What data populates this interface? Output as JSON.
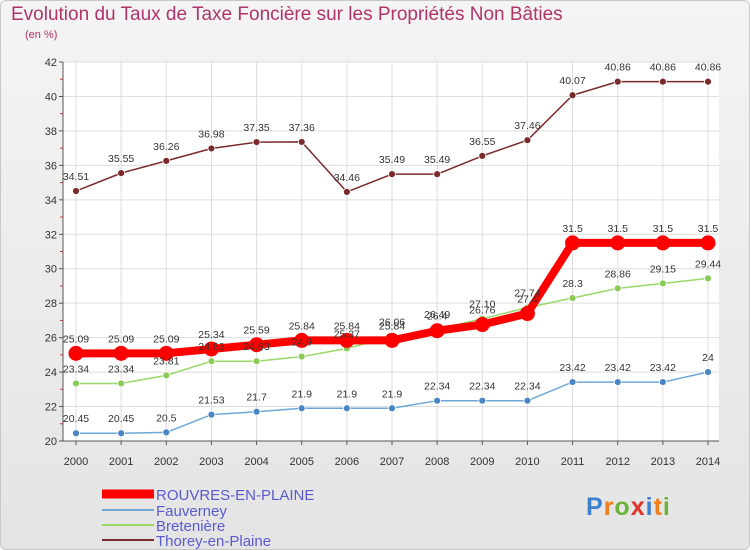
{
  "chart_data": {
    "type": "line",
    "title": "Evolution du Taux de Taxe Foncière sur les Propriétés Non Bâties",
    "subtitle": "(en %)",
    "xlabel": "",
    "ylabel": "",
    "ylim": [
      20,
      42
    ],
    "yticks": [
      20,
      22,
      24,
      26,
      28,
      30,
      32,
      34,
      36,
      38,
      40,
      42
    ],
    "grid": true,
    "legend_position": "bottom-left",
    "categories": [
      "2000",
      "2001",
      "2002",
      "2003",
      "2004",
      "2005",
      "2006",
      "2007",
      "2008",
      "2009",
      "2010",
      "2011",
      "2012",
      "2013",
      "2014"
    ],
    "series": [
      {
        "name": "ROUVRES-EN-PLAINE",
        "color": "#ff0000",
        "marker": "#ff0000",
        "values": [
          25.09,
          25.09,
          25.09,
          25.34,
          25.59,
          25.84,
          25.84,
          25.84,
          26.4,
          26.76,
          27.4,
          31.5,
          31.5,
          31.5,
          31.5
        ],
        "labels": [
          "25.09",
          "25.09",
          "25.09",
          "25.34",
          "25.59",
          "25.84",
          "25.84",
          "25.84",
          "26.4",
          "26.76",
          "27.4",
          "31.5",
          "31.5",
          "31.5",
          "31.5"
        ]
      },
      {
        "name": "Fauverney",
        "color": "#6ea7d6",
        "marker": "#4a86c6",
        "values": [
          20.45,
          20.45,
          20.5,
          21.53,
          21.7,
          21.9,
          21.9,
          21.9,
          22.34,
          22.34,
          22.34,
          23.42,
          23.42,
          23.42,
          24
        ],
        "labels": [
          "20.45",
          "20.45",
          "20.5",
          "21.53",
          "21.7",
          "21.9",
          "21.9",
          "21.9",
          "22.34",
          "22.34",
          "22.34",
          "23.42",
          "23.42",
          "23.42",
          "24"
        ]
      },
      {
        "name": "Bretenière",
        "color": "#9ad86a",
        "marker": "#8acb57",
        "values": [
          23.34,
          23.34,
          23.81,
          24.63,
          24.63,
          24.9,
          25.37,
          26.06,
          26.49,
          27.1,
          27.74,
          28.3,
          28.86,
          29.15,
          29.44
        ],
        "labels": [
          "23.34",
          "23.34",
          "23.81",
          "24.63",
          "24.63",
          "24.9",
          "25.37",
          "26.06",
          "26.49",
          "27.10",
          "27.74",
          "28.3",
          "28.86",
          "29.15",
          "29.44"
        ]
      },
      {
        "name": "Thorey-en-Plaine",
        "color": "#7a2a2a",
        "marker": "#7a2a2a",
        "values": [
          34.51,
          35.55,
          36.26,
          36.98,
          37.35,
          37.36,
          34.46,
          35.49,
          35.49,
          36.55,
          37.46,
          40.07,
          40.86,
          40.86,
          40.86
        ],
        "labels": [
          "34.51",
          "35.55",
          "36.26",
          "36.98",
          "37.35",
          "37.36",
          "34.46",
          "35.49",
          "35.49",
          "36.55",
          "37.46",
          "40.07",
          "40.86",
          "40.86",
          "40.86"
        ]
      }
    ]
  },
  "legend_label_color": "#5a5ad0",
  "logo": {
    "letters": [
      "P",
      "r",
      "o",
      "x",
      "i",
      "t",
      "i"
    ],
    "colors": [
      "#3a7fd0",
      "#f07c1a",
      "#6ab23a",
      "#e0322a",
      "#3a7fd0",
      "#f07c1a",
      "#6ab23a"
    ]
  }
}
